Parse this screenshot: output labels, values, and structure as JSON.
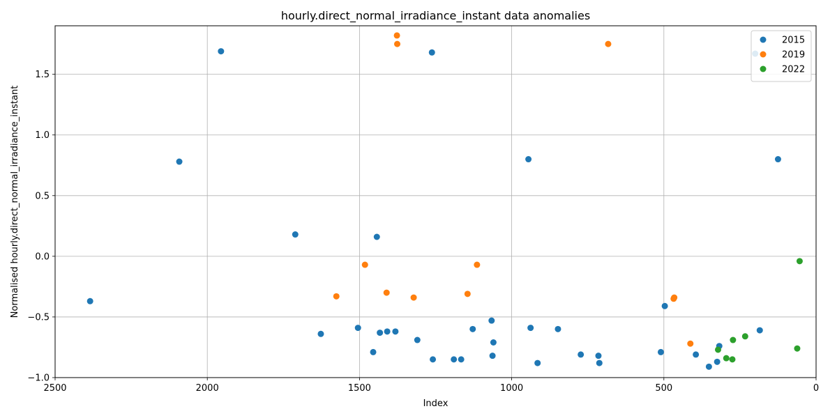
{
  "chart_data": {
    "type": "scatter",
    "title": "hourly.direct_normal_irradiance_instant data anomalies",
    "xlabel": "Index",
    "ylabel": "Normalised hourly.direct_normal_irradiance_instant",
    "xlim": [
      2500,
      0
    ],
    "ylim": [
      -1.0,
      1.9
    ],
    "x_inverted": true,
    "x_ticks": [
      2500,
      2000,
      1500,
      1000,
      500,
      0
    ],
    "y_ticks": [
      -1.0,
      -0.5,
      0.0,
      0.5,
      1.0,
      1.5
    ],
    "x_tick_labels": [
      "2500",
      "2000",
      "1500",
      "1000",
      "500",
      "0"
    ],
    "y_tick_labels": [
      "−1.0",
      "−0.5",
      "0.0",
      "0.5",
      "1.0",
      "1.5"
    ],
    "grid": true,
    "legend_position": "top-right",
    "series": [
      {
        "name": "2015",
        "color": "#1f77b4",
        "points": [
          [
            2385,
            -0.37
          ],
          [
            2092,
            0.78
          ],
          [
            1955,
            1.69
          ],
          [
            1711,
            0.18
          ],
          [
            1627,
            -0.64
          ],
          [
            1505,
            -0.59
          ],
          [
            1455,
            -0.79
          ],
          [
            1443,
            0.16
          ],
          [
            1433,
            -0.63
          ],
          [
            1409,
            -0.62
          ],
          [
            1382,
            -0.62
          ],
          [
            1310,
            -0.69
          ],
          [
            1262,
            1.68
          ],
          [
            1259,
            -0.85
          ],
          [
            1190,
            -0.85
          ],
          [
            1166,
            -0.85
          ],
          [
            1128,
            -0.6
          ],
          [
            1066,
            -0.53
          ],
          [
            1063,
            -0.82
          ],
          [
            1060,
            -0.71
          ],
          [
            945,
            0.8
          ],
          [
            938,
            -0.59
          ],
          [
            915,
            -0.88
          ],
          [
            848,
            -0.6
          ],
          [
            773,
            -0.81
          ],
          [
            715,
            -0.82
          ],
          [
            712,
            -0.88
          ],
          [
            510,
            -0.79
          ],
          [
            497,
            -0.41
          ],
          [
            395,
            -0.81
          ],
          [
            352,
            -0.91
          ],
          [
            325,
            -0.87
          ],
          [
            318,
            -0.74
          ],
          [
            200,
            1.67
          ],
          [
            185,
            -0.61
          ],
          [
            125,
            0.8
          ]
        ]
      },
      {
        "name": "2019",
        "color": "#ff7f0e",
        "points": [
          [
            1576,
            -0.33
          ],
          [
            1482,
            -0.07
          ],
          [
            1411,
            -0.3
          ],
          [
            1377,
            1.82
          ],
          [
            1376,
            1.75
          ],
          [
            1322,
            -0.34
          ],
          [
            1145,
            -0.31
          ],
          [
            1114,
            -0.07
          ],
          [
            683,
            1.75
          ],
          [
            468,
            -0.35
          ],
          [
            466,
            -0.34
          ],
          [
            413,
            -0.72
          ]
        ]
      },
      {
        "name": "2022",
        "color": "#2ca02c",
        "points": [
          [
            322,
            -0.77
          ],
          [
            295,
            -0.84
          ],
          [
            275,
            -0.85
          ],
          [
            273,
            -0.69
          ],
          [
            233,
            -0.66
          ],
          [
            62,
            -0.76
          ],
          [
            54,
            -0.04
          ]
        ]
      }
    ]
  }
}
